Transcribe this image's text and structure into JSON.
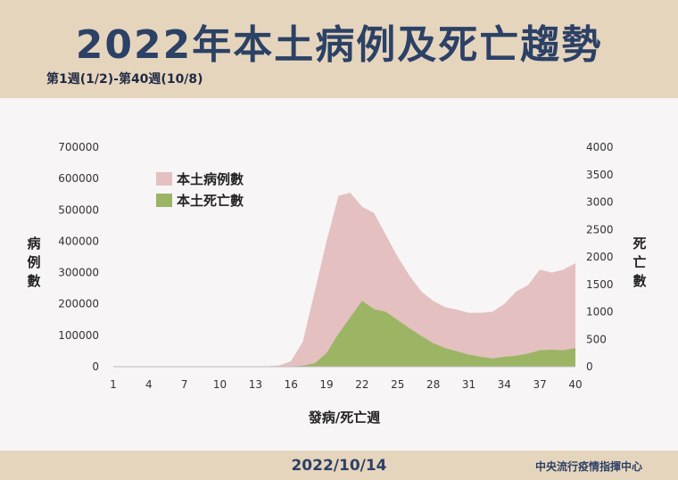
{
  "header": {
    "title": "2022年本土病例及死亡趨勢",
    "subtitle": "第1週(1/2)-第40週(10/8)"
  },
  "footer": {
    "date": "2022/10/14",
    "source": "中央流行疫情指揮中心"
  },
  "colors": {
    "cases": "#e4c0c0",
    "deaths": "#9bb565",
    "title": "#2c4166",
    "header_bg": "#e6d5bd",
    "panel_bg": "#f7f5f5"
  },
  "chart_data": {
    "type": "area",
    "xlabel": "發病/死亡週",
    "ylabel_left": "病例數",
    "ylabel_right": "死亡數",
    "ylim_left": [
      0,
      700000
    ],
    "ylim_right": [
      0,
      4000
    ],
    "yticks_left": [
      "0",
      "100000",
      "200000",
      "300000",
      "400000",
      "500000",
      "600000",
      "700000"
    ],
    "yticks_right": [
      "0",
      "500",
      "1000",
      "1500",
      "2000",
      "2500",
      "3000",
      "3500",
      "4000"
    ],
    "xticks": [
      "1",
      "4",
      "7",
      "10",
      "13",
      "16",
      "19",
      "22",
      "25",
      "28",
      "31",
      "34",
      "37",
      "40"
    ],
    "legend_position": "top-left",
    "x": [
      1,
      2,
      3,
      4,
      5,
      6,
      7,
      8,
      9,
      10,
      11,
      12,
      13,
      14,
      15,
      16,
      17,
      18,
      19,
      20,
      21,
      22,
      23,
      24,
      25,
      26,
      27,
      28,
      29,
      30,
      31,
      32,
      33,
      34,
      35,
      36,
      37,
      38,
      39,
      40
    ],
    "series": [
      {
        "name": "本土病例數",
        "axis": "left",
        "values": [
          200,
          200,
          200,
          200,
          200,
          200,
          200,
          200,
          200,
          300,
          500,
          600,
          800,
          1500,
          4000,
          18000,
          80000,
          240000,
          400000,
          545000,
          555000,
          510000,
          490000,
          420000,
          350000,
          290000,
          240000,
          210000,
          190000,
          182000,
          172000,
          172000,
          175000,
          200000,
          240000,
          260000,
          310000,
          300000,
          310000,
          330000
        ]
      },
      {
        "name": "本土死亡數",
        "axis": "left_unused",
        "values": [
          0,
          0,
          0,
          0,
          0,
          0,
          0,
          0,
          0,
          0,
          0,
          0,
          0,
          0,
          0,
          0,
          20,
          60,
          250,
          600,
          900,
          1200,
          1050,
          1000,
          850,
          700,
          560,
          430,
          340,
          280,
          220,
          180,
          150,
          180,
          200,
          240,
          300,
          310,
          300,
          340
        ]
      }
    ]
  }
}
